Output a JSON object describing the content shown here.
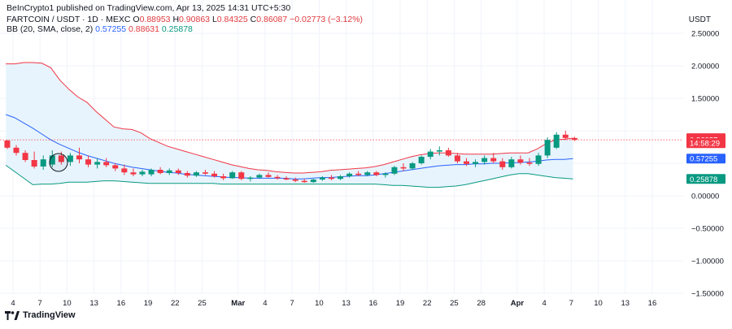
{
  "header": {
    "publish_line": "BeInCrypto1 published on TradingView.com, Apr 13, 2025 14:31 UTC+5:30",
    "symbol_line": "FARTCOIN / USDT · 1D · MEXC",
    "open_label": "O",
    "open": "0.88953",
    "high_label": "H",
    "high": "0.90863",
    "low_label": "L",
    "low": "0.84325",
    "close_label": "C",
    "close": "0.86087",
    "change": "−0.02773 (−3.12%)",
    "bb_label": "BB (20, SMA, close, 2)",
    "bb_basis": "0.57255",
    "bb_upper": "0.88631",
    "bb_lower": "0.25878"
  },
  "currency": "USDT",
  "logo_text": "TradingView",
  "colors": {
    "up": "#089981",
    "down": "#f23645",
    "upper_band": "#f23645",
    "basis": "#2962ff",
    "lower_band": "#089981",
    "band_fill": "#e3f2fd",
    "grid": "#f0f3fa",
    "axis_text": "#131722"
  },
  "chart_data": {
    "type": "candlestick",
    "title": "FARTCOIN / USDT · 1D · MEXC",
    "indicator": "BB (20, SMA, close, 2)",
    "ylim": [
      -1.6,
      2.75
    ],
    "y_ticks": [
      2.5,
      2.0,
      1.5,
      1.0,
      0.5,
      0.0,
      -0.5,
      -1.0,
      -1.5
    ],
    "y_tick_labels": [
      "2.50000",
      "2.00000",
      "1.50000",
      "",
      "",
      "0.00000",
      "−0.50000",
      "−1.00000",
      "−1.50000"
    ],
    "x_tick_labels": [
      "4",
      "7",
      "10",
      "13",
      "16",
      "19",
      "22",
      "25",
      "Mar",
      "4",
      "7",
      "10",
      "13",
      "16",
      "19",
      "22",
      "25",
      "28",
      "Apr",
      "4",
      "7",
      "10",
      "13",
      "16"
    ],
    "x_tick_day_index": [
      0,
      3,
      6,
      9,
      12,
      15,
      18,
      21,
      25,
      28,
      31,
      34,
      37,
      40,
      43,
      46,
      49,
      52,
      56,
      59,
      62,
      65,
      68,
      71
    ],
    "price_labels": [
      {
        "value": 0.88631,
        "text": "0.88631",
        "color": "#f23645"
      },
      {
        "value": 0.86087,
        "text": "0.86087",
        "color": "#f23645"
      },
      {
        "value": 0.81,
        "text": "14:58:29",
        "color": "#f23645"
      },
      {
        "value": 0.57255,
        "text": "0.57255",
        "color": "#2962ff"
      },
      {
        "value": 0.25878,
        "text": "0.25878",
        "color": "#089981"
      }
    ],
    "last_price": 0.86087,
    "candles": [
      [
        0.85,
        0.86,
        0.72,
        0.74
      ],
      [
        0.74,
        0.78,
        0.62,
        0.66
      ],
      [
        0.66,
        0.7,
        0.52,
        0.55
      ],
      [
        0.55,
        0.68,
        0.42,
        0.45
      ],
      [
        0.45,
        0.62,
        0.4,
        0.56
      ],
      [
        0.48,
        0.7,
        0.44,
        0.62
      ],
      [
        0.62,
        0.68,
        0.48,
        0.52
      ],
      [
        0.52,
        0.66,
        0.46,
        0.62
      ],
      [
        0.62,
        0.74,
        0.5,
        0.56
      ],
      [
        0.56,
        0.62,
        0.44,
        0.48
      ],
      [
        0.48,
        0.58,
        0.42,
        0.52
      ],
      [
        0.52,
        0.58,
        0.44,
        0.47
      ],
      [
        0.47,
        0.5,
        0.38,
        0.42
      ],
      [
        0.42,
        0.48,
        0.32,
        0.36
      ],
      [
        0.36,
        0.42,
        0.3,
        0.33
      ],
      [
        0.33,
        0.4,
        0.3,
        0.37
      ],
      [
        0.33,
        0.42,
        0.3,
        0.4
      ],
      [
        0.4,
        0.44,
        0.33,
        0.35
      ],
      [
        0.35,
        0.42,
        0.32,
        0.39
      ],
      [
        0.39,
        0.42,
        0.32,
        0.35
      ],
      [
        0.35,
        0.38,
        0.28,
        0.31
      ],
      [
        0.31,
        0.38,
        0.29,
        0.36
      ],
      [
        0.36,
        0.4,
        0.32,
        0.34
      ],
      [
        0.34,
        0.38,
        0.28,
        0.3
      ],
      [
        0.3,
        0.34,
        0.24,
        0.27
      ],
      [
        0.27,
        0.38,
        0.26,
        0.36
      ],
      [
        0.36,
        0.38,
        0.24,
        0.26
      ],
      [
        0.26,
        0.3,
        0.22,
        0.28
      ],
      [
        0.28,
        0.34,
        0.26,
        0.32
      ],
      [
        0.32,
        0.36,
        0.28,
        0.29
      ],
      [
        0.29,
        0.32,
        0.25,
        0.27
      ],
      [
        0.27,
        0.3,
        0.24,
        0.25
      ],
      [
        0.25,
        0.28,
        0.21,
        0.23
      ],
      [
        0.23,
        0.26,
        0.2,
        0.21
      ],
      [
        0.21,
        0.26,
        0.2,
        0.25
      ],
      [
        0.25,
        0.3,
        0.23,
        0.28
      ],
      [
        0.28,
        0.32,
        0.24,
        0.26
      ],
      [
        0.26,
        0.32,
        0.24,
        0.3
      ],
      [
        0.3,
        0.36,
        0.28,
        0.34
      ],
      [
        0.34,
        0.38,
        0.3,
        0.32
      ],
      [
        0.32,
        0.38,
        0.3,
        0.36
      ],
      [
        0.36,
        0.38,
        0.3,
        0.32
      ],
      [
        0.32,
        0.36,
        0.28,
        0.34
      ],
      [
        0.34,
        0.46,
        0.32,
        0.44
      ],
      [
        0.44,
        0.5,
        0.38,
        0.42
      ],
      [
        0.42,
        0.52,
        0.4,
        0.5
      ],
      [
        0.5,
        0.62,
        0.48,
        0.6
      ],
      [
        0.6,
        0.72,
        0.56,
        0.68
      ],
      [
        0.68,
        0.76,
        0.62,
        0.7
      ],
      [
        0.7,
        0.74,
        0.6,
        0.62
      ],
      [
        0.62,
        0.66,
        0.5,
        0.53
      ],
      [
        0.53,
        0.58,
        0.46,
        0.49
      ],
      [
        0.49,
        0.56,
        0.44,
        0.52
      ],
      [
        0.52,
        0.62,
        0.48,
        0.58
      ],
      [
        0.58,
        0.66,
        0.5,
        0.53
      ],
      [
        0.53,
        0.58,
        0.4,
        0.44
      ],
      [
        0.44,
        0.6,
        0.42,
        0.56
      ],
      [
        0.56,
        0.62,
        0.48,
        0.51
      ],
      [
        0.51,
        0.58,
        0.46,
        0.49
      ],
      [
        0.49,
        0.66,
        0.46,
        0.62
      ],
      [
        0.62,
        0.9,
        0.58,
        0.86
      ],
      [
        0.74,
        0.98,
        0.72,
        0.94
      ],
      [
        0.94,
        1.0,
        0.86,
        0.89
      ],
      [
        0.88953,
        0.90863,
        0.84325,
        0.86087
      ]
    ],
    "bb_upper": [
      2.03,
      2.03,
      2.05,
      2.05,
      2.04,
      1.97,
      1.78,
      1.64,
      1.52,
      1.44,
      1.3,
      1.18,
      1.06,
      1.03,
      1.02,
      0.97,
      0.88,
      0.82,
      0.76,
      0.72,
      0.68,
      0.64,
      0.6,
      0.56,
      0.52,
      0.48,
      0.45,
      0.42,
      0.4,
      0.39,
      0.37,
      0.36,
      0.35,
      0.35,
      0.36,
      0.37,
      0.39,
      0.4,
      0.41,
      0.42,
      0.43,
      0.45,
      0.48,
      0.52,
      0.56,
      0.6,
      0.63,
      0.65,
      0.66,
      0.66,
      0.65,
      0.64,
      0.64,
      0.64,
      0.64,
      0.65,
      0.66,
      0.66,
      0.66,
      0.72,
      0.8,
      0.86,
      0.87,
      0.88631
    ],
    "bb_basis": [
      1.25,
      1.2,
      1.12,
      1.04,
      0.95,
      0.86,
      0.79,
      0.73,
      0.67,
      0.62,
      0.58,
      0.54,
      0.5,
      0.47,
      0.44,
      0.42,
      0.4,
      0.38,
      0.36,
      0.35,
      0.33,
      0.32,
      0.31,
      0.3,
      0.29,
      0.28,
      0.28,
      0.27,
      0.27,
      0.27,
      0.27,
      0.27,
      0.26,
      0.26,
      0.27,
      0.28,
      0.28,
      0.29,
      0.3,
      0.31,
      0.31,
      0.32,
      0.34,
      0.36,
      0.38,
      0.4,
      0.42,
      0.44,
      0.46,
      0.47,
      0.48,
      0.48,
      0.49,
      0.49,
      0.5,
      0.5,
      0.51,
      0.51,
      0.52,
      0.53,
      0.55,
      0.56,
      0.56,
      0.57255
    ],
    "bb_lower": [
      0.47,
      0.37,
      0.27,
      0.17,
      0.18,
      0.18,
      0.19,
      0.21,
      0.21,
      0.21,
      0.22,
      0.23,
      0.23,
      0.22,
      0.21,
      0.2,
      0.19,
      0.19,
      0.19,
      0.19,
      0.19,
      0.19,
      0.19,
      0.19,
      0.18,
      0.18,
      0.18,
      0.18,
      0.18,
      0.18,
      0.18,
      0.18,
      0.18,
      0.18,
      0.18,
      0.18,
      0.18,
      0.18,
      0.18,
      0.18,
      0.18,
      0.18,
      0.17,
      0.16,
      0.16,
      0.15,
      0.14,
      0.13,
      0.13,
      0.14,
      0.15,
      0.17,
      0.2,
      0.23,
      0.26,
      0.29,
      0.32,
      0.34,
      0.34,
      0.32,
      0.3,
      0.28,
      0.27,
      0.25878
    ]
  }
}
